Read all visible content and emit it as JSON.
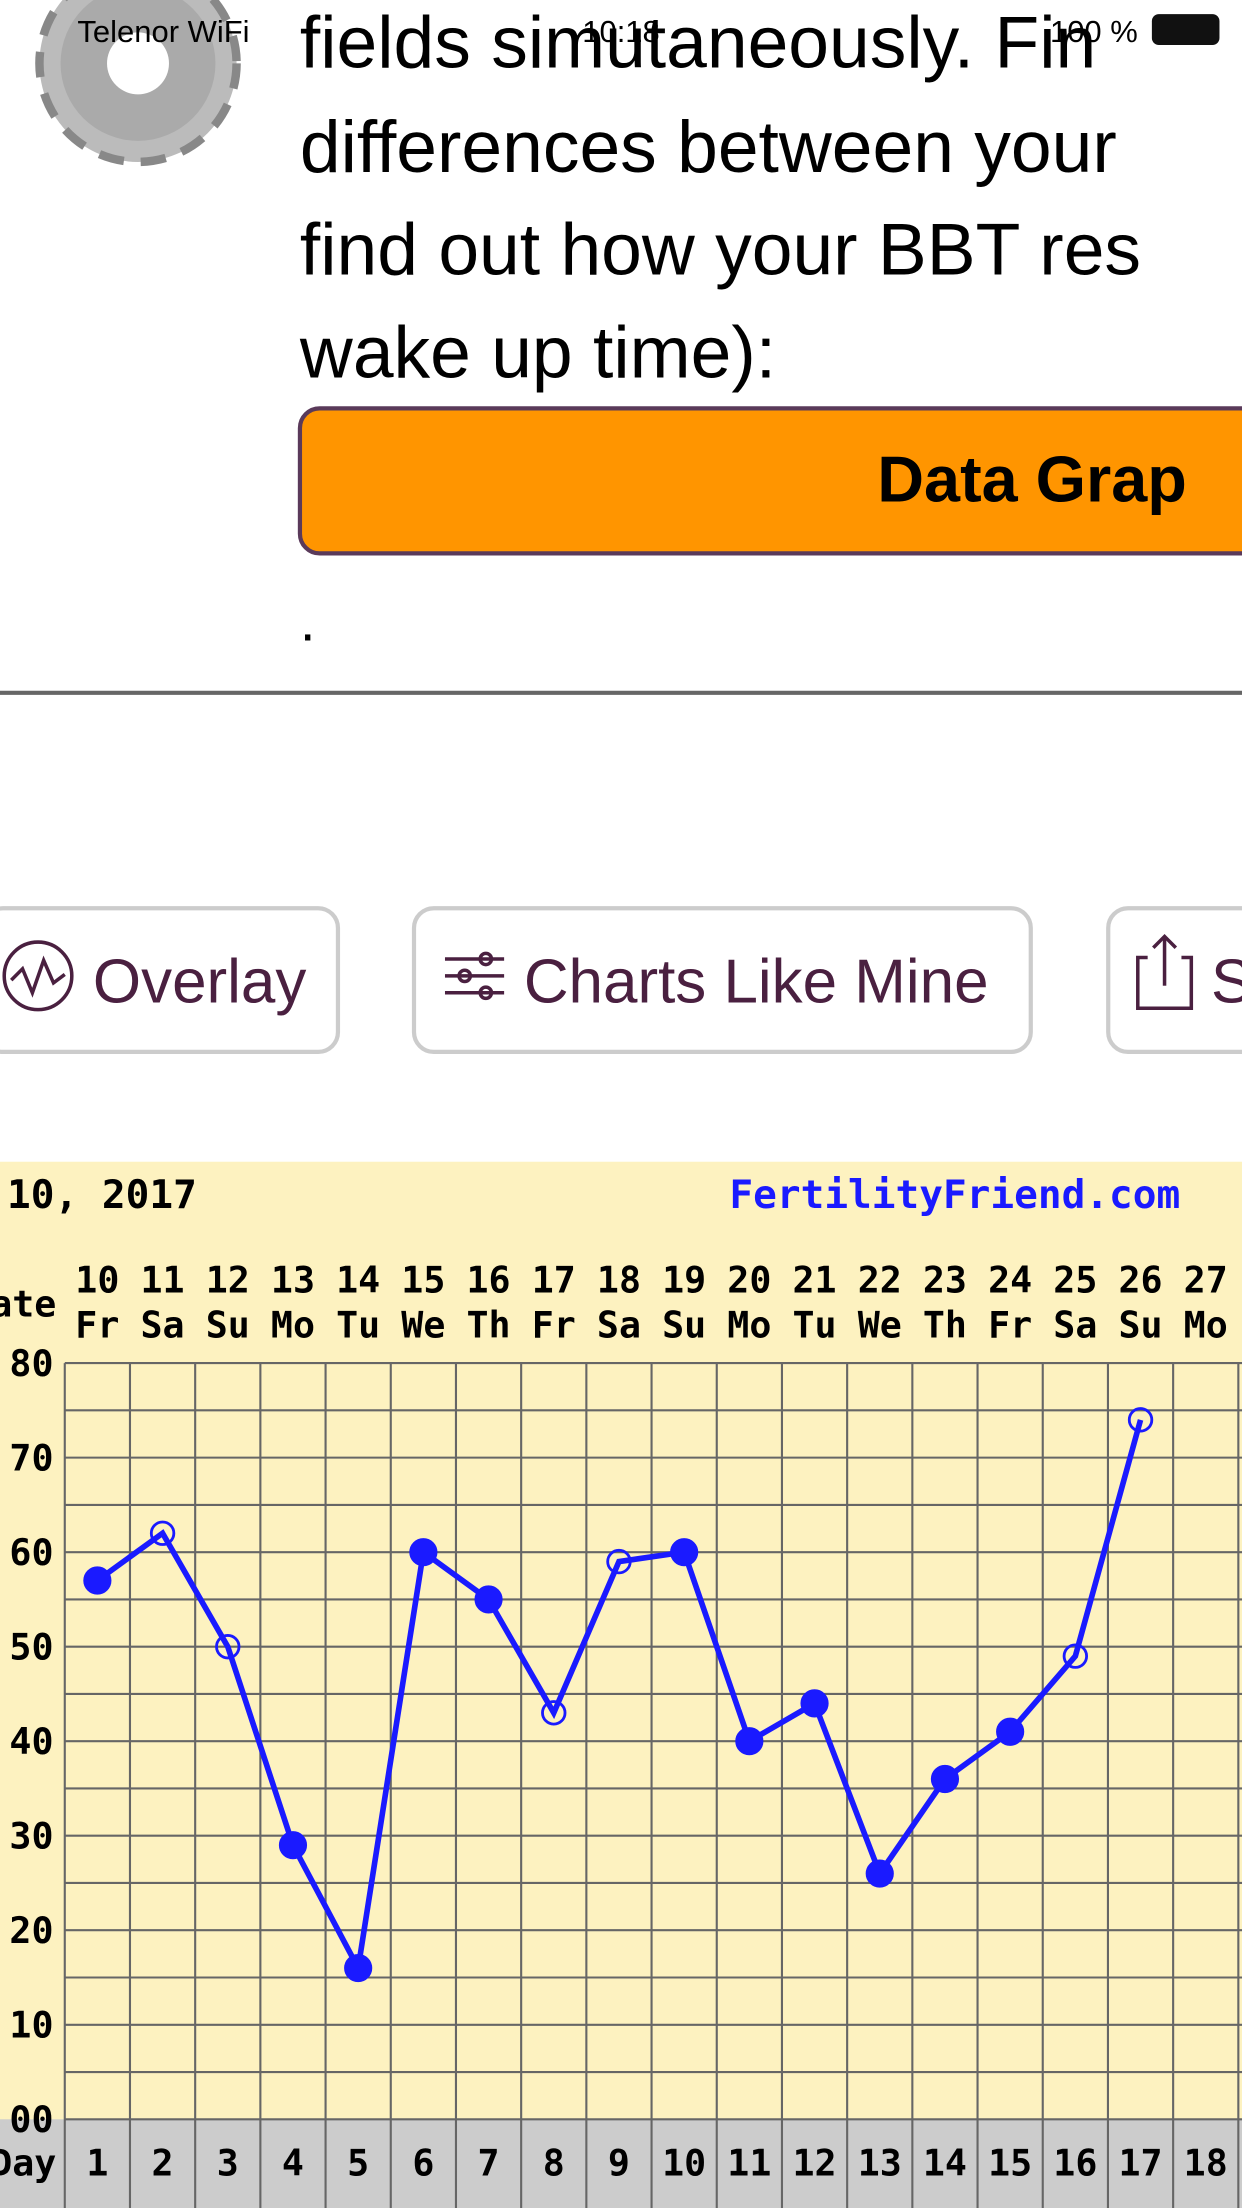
{
  "status_bar": {
    "carrier": "Telenor WiFi",
    "time": "10:18",
    "battery": "100 %"
  },
  "text_lines": [
    "fields simutaneously. Fin",
    "differences between your",
    "find out how your BBT res",
    "wake up time):"
  ],
  "primary_button": "Data Grap",
  "dot": ".",
  "toolbar": [
    "Overlay",
    "Charts Like Mine",
    "S"
  ],
  "chart_data": {
    "type": "line",
    "title": "10, 2017",
    "site": "FertilityFriend.com",
    "date_label": "Date",
    "day_label": "Day",
    "categories": [
      "10",
      "11",
      "12",
      "13",
      "14",
      "15",
      "16",
      "17",
      "18",
      "19",
      "20",
      "21",
      "22",
      "23",
      "24",
      "25",
      "26",
      "27"
    ],
    "weekdays": [
      "Fr",
      "Sa",
      "Su",
      "Mo",
      "Tu",
      "We",
      "Th",
      "Fr",
      "Sa",
      "Su",
      "Mo",
      "Tu",
      "We",
      "Th",
      "Fr",
      "Sa",
      "Su",
      "Mo"
    ],
    "cycle_days": [
      "1",
      "2",
      "3",
      "4",
      "5",
      "6",
      "7",
      "8",
      "9",
      "10",
      "11",
      "12",
      "13",
      "14",
      "15",
      "16",
      "17",
      "18"
    ],
    "series": [
      {
        "name": "BBT",
        "color": "#1a1aff",
        "values": [
          57,
          62,
          50,
          29,
          16,
          60,
          55,
          43,
          59,
          60,
          40,
          44,
          26,
          36,
          41,
          49,
          74,
          null
        ],
        "markers": [
          "filled",
          "open",
          "open",
          "filled",
          "filled",
          "filled",
          "filled",
          "open",
          "open",
          "filled",
          "filled",
          "filled",
          "filled",
          "filled",
          "filled",
          "open",
          "open",
          null
        ]
      }
    ],
    "ylim": [
      0,
      80
    ],
    "yticks": [
      {
        "value": 0,
        "label": "00"
      },
      10,
      20,
      30,
      40,
      50,
      60,
      70,
      80
    ],
    "grid": true,
    "background": "#fdf2c0"
  }
}
